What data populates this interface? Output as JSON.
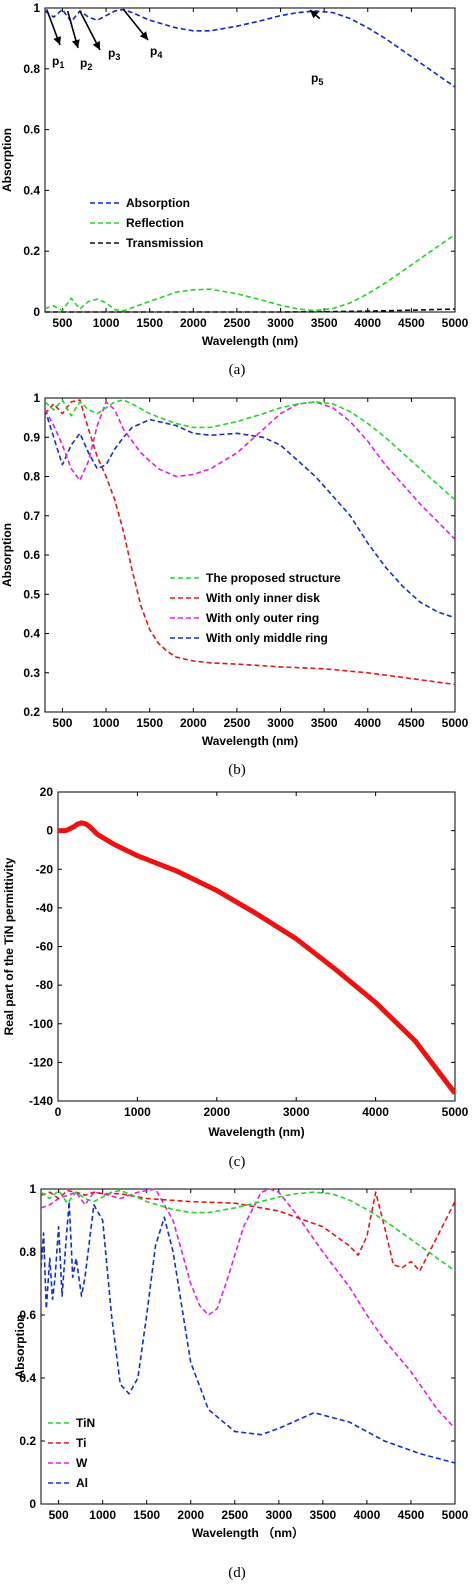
{
  "chart_data": [
    {
      "id": "a",
      "type": "line",
      "panel_label": "(a)",
      "xlabel": "Wavelength (nm)",
      "ylabel": "Absorption",
      "xlim": [
        300,
        5000
      ],
      "ylim": [
        0,
        1
      ],
      "xticks": [
        500,
        1000,
        1500,
        2000,
        2500,
        3000,
        3500,
        4000,
        4500,
        5000
      ],
      "yticks": [
        0,
        0.2,
        0.4,
        0.6,
        0.8,
        1
      ],
      "ytick_labels": [
        "0",
        "0.2",
        "0.4",
        "0.6",
        "0.8",
        "1"
      ],
      "legend_position": "lower-left",
      "line_style": "dashed",
      "series": [
        {
          "name": "Absorption",
          "color": "#0b27c8",
          "x": [
            300,
            400,
            500,
            600,
            700,
            800,
            900,
            1000,
            1100,
            1200,
            1300,
            1500,
            1800,
            2000,
            2200,
            2500,
            2800,
            3000,
            3200,
            3400,
            3600,
            3800,
            4000,
            4200,
            4400,
            4600,
            4800,
            5000
          ],
          "y": [
            0.99,
            0.97,
            0.995,
            0.955,
            0.99,
            0.97,
            0.96,
            0.975,
            0.99,
            0.995,
            0.985,
            0.96,
            0.935,
            0.925,
            0.925,
            0.94,
            0.96,
            0.975,
            0.985,
            0.99,
            0.985,
            0.965,
            0.935,
            0.9,
            0.86,
            0.82,
            0.78,
            0.74
          ]
        },
        {
          "name": "Reflection",
          "color": "#26d326",
          "x": [
            300,
            400,
            500,
            600,
            700,
            800,
            900,
            1000,
            1100,
            1200,
            1500,
            1800,
            2000,
            2200,
            2500,
            2800,
            3000,
            3200,
            3400,
            3600,
            3800,
            4000,
            4200,
            4400,
            4600,
            4800,
            5000
          ],
          "y": [
            0.012,
            0.02,
            0.005,
            0.045,
            0.01,
            0.035,
            0.042,
            0.03,
            0.008,
            0.004,
            0.035,
            0.065,
            0.073,
            0.075,
            0.06,
            0.038,
            0.022,
            0.01,
            0.005,
            0.012,
            0.03,
            0.06,
            0.095,
            0.135,
            0.175,
            0.215,
            0.255
          ]
        },
        {
          "name": "Transmission",
          "color": "#111111",
          "x": [
            300,
            1000,
            2000,
            3000,
            3500,
            4000,
            4500,
            5000
          ],
          "y": [
            0.0,
            0.0,
            0.0,
            0.0,
            0.001,
            0.003,
            0.006,
            0.01
          ]
        }
      ],
      "annotations": [
        {
          "base": "p",
          "sub": "1"
        },
        {
          "base": "p",
          "sub": "2"
        },
        {
          "base": "p",
          "sub": "3"
        },
        {
          "base": "p",
          "sub": "4"
        },
        {
          "base": "p",
          "sub": "5"
        }
      ]
    },
    {
      "id": "b",
      "type": "line",
      "panel_label": "(b)",
      "xlabel": "Wavelength (nm)",
      "ylabel": "Absorption",
      "xlim": [
        300,
        5000
      ],
      "ylim": [
        0.2,
        1
      ],
      "xticks": [
        500,
        1000,
        1500,
        2000,
        2500,
        3000,
        3500,
        4000,
        4500,
        5000
      ],
      "yticks": [
        0.2,
        0.3,
        0.4,
        0.5,
        0.6,
        0.7,
        0.8,
        0.9,
        1
      ],
      "ytick_labels": [
        "0.2",
        "0.3",
        "0.4",
        "0.5",
        "0.6",
        "0.7",
        "0.8",
        "0.9",
        "1"
      ],
      "legend_position": "center-right",
      "line_style": "dashed",
      "series": [
        {
          "name": "The proposed structure",
          "color": "#26d326",
          "x": [
            300,
            400,
            500,
            600,
            700,
            800,
            900,
            1000,
            1100,
            1200,
            1300,
            1500,
            1800,
            2000,
            2200,
            2500,
            2800,
            3000,
            3200,
            3400,
            3600,
            3800,
            4000,
            4200,
            4400,
            4600,
            4800,
            5000
          ],
          "y": [
            0.99,
            0.97,
            0.995,
            0.955,
            0.99,
            0.97,
            0.96,
            0.975,
            0.99,
            0.995,
            0.985,
            0.96,
            0.935,
            0.925,
            0.925,
            0.94,
            0.96,
            0.975,
            0.985,
            0.99,
            0.985,
            0.965,
            0.935,
            0.9,
            0.86,
            0.82,
            0.78,
            0.74
          ]
        },
        {
          "name": "With only inner disk",
          "color": "#e01818",
          "x": [
            300,
            400,
            500,
            600,
            700,
            800,
            900,
            1000,
            1100,
            1200,
            1300,
            1400,
            1500,
            1600,
            1700,
            1800,
            2000,
            2200,
            2500,
            3000,
            3500,
            4000,
            4500,
            5000
          ],
          "y": [
            0.96,
            0.985,
            0.96,
            0.99,
            0.995,
            0.92,
            0.85,
            0.8,
            0.74,
            0.66,
            0.56,
            0.47,
            0.41,
            0.375,
            0.355,
            0.34,
            0.33,
            0.325,
            0.322,
            0.315,
            0.31,
            0.3,
            0.285,
            0.27
          ]
        },
        {
          "name": "With only outer ring",
          "color": "#e020e0",
          "x": [
            300,
            400,
            500,
            600,
            700,
            800,
            900,
            1000,
            1100,
            1200,
            1400,
            1600,
            1800,
            2000,
            2200,
            2500,
            2800,
            3000,
            3200,
            3400,
            3600,
            3800,
            4000,
            4200,
            4400,
            4600,
            4800,
            5000
          ],
          "y": [
            0.97,
            0.93,
            0.88,
            0.82,
            0.79,
            0.84,
            0.93,
            0.99,
            0.97,
            0.92,
            0.86,
            0.82,
            0.8,
            0.805,
            0.82,
            0.86,
            0.92,
            0.96,
            0.985,
            0.99,
            0.975,
            0.94,
            0.89,
            0.83,
            0.78,
            0.73,
            0.685,
            0.64
          ]
        },
        {
          "name": "With only middle ring",
          "color": "#1030c8",
          "x": [
            300,
            400,
            500,
            600,
            700,
            800,
            900,
            1000,
            1100,
            1200,
            1300,
            1500,
            1800,
            2000,
            2200,
            2500,
            2800,
            3000,
            3200,
            3400,
            3600,
            3800,
            4000,
            4200,
            4400,
            4600,
            4800,
            5000
          ],
          "y": [
            0.97,
            0.9,
            0.83,
            0.88,
            0.91,
            0.86,
            0.82,
            0.83,
            0.87,
            0.9,
            0.925,
            0.945,
            0.93,
            0.91,
            0.905,
            0.91,
            0.9,
            0.88,
            0.84,
            0.8,
            0.75,
            0.7,
            0.63,
            0.57,
            0.52,
            0.48,
            0.455,
            0.44
          ]
        }
      ]
    },
    {
      "id": "c",
      "type": "line",
      "panel_label": "(c)",
      "xlabel": "Wavelength (nm)",
      "ylabel": "Real part of the TiN permittivity",
      "xlim": [
        0,
        5000
      ],
      "ylim": [
        -140,
        20
      ],
      "xticks": [
        0,
        1000,
        2000,
        3000,
        4000,
        5000
      ],
      "yticks": [
        -140,
        -120,
        -100,
        -80,
        -60,
        -40,
        -20,
        0,
        20
      ],
      "ytick_labels": [
        "-140",
        "-120",
        "-100",
        "-80",
        "-60",
        "-40",
        "-20",
        "0",
        "20"
      ],
      "line_style": "solid-thick",
      "series": [
        {
          "color": "#ee1111",
          "x": [
            0,
            100,
            200,
            250,
            300,
            350,
            400,
            500,
            700,
            1000,
            1500,
            2000,
            2500,
            3000,
            3500,
            4000,
            4500,
            5000
          ],
          "y": [
            0,
            0,
            2,
            3.5,
            4,
            3.5,
            2,
            -2,
            -7,
            -13,
            -21,
            -31,
            -43,
            -56,
            -72,
            -89,
            -109,
            -136
          ]
        }
      ]
    },
    {
      "id": "d",
      "type": "line",
      "panel_label": "(d)",
      "xlabel": "Wavelength （nm）",
      "ylabel": "Absorption",
      "xlim": [
        300,
        5000
      ],
      "ylim": [
        0,
        1
      ],
      "xticks": [
        500,
        1000,
        1500,
        2000,
        2500,
        3000,
        3500,
        4000,
        4500,
        5000
      ],
      "yticks": [
        0,
        0.2,
        0.4,
        0.6,
        0.8,
        1
      ],
      "ytick_labels": [
        "0",
        "0.2",
        "0.4",
        "0.6",
        "0.8",
        "1"
      ],
      "legend_position": "lower-left",
      "line_style": "dashed",
      "series": [
        {
          "name": "TiN",
          "color": "#26d326",
          "x": [
            300,
            400,
            500,
            600,
            700,
            800,
            900,
            1000,
            1100,
            1200,
            1300,
            1500,
            1800,
            2000,
            2200,
            2500,
            2800,
            3000,
            3200,
            3400,
            3600,
            3800,
            4000,
            4200,
            4400,
            4600,
            4800,
            5000
          ],
          "y": [
            0.99,
            0.97,
            0.995,
            0.955,
            0.99,
            0.97,
            0.96,
            0.975,
            0.99,
            0.995,
            0.985,
            0.96,
            0.935,
            0.925,
            0.925,
            0.94,
            0.96,
            0.975,
            0.985,
            0.99,
            0.985,
            0.965,
            0.935,
            0.9,
            0.86,
            0.82,
            0.78,
            0.74
          ]
        },
        {
          "name": "Ti",
          "color": "#e01818",
          "x": [
            300,
            400,
            500,
            600,
            700,
            800,
            900,
            1000,
            1200,
            1500,
            2000,
            2500,
            3000,
            3500,
            3800,
            3900,
            4000,
            4100,
            4200,
            4300,
            4400,
            4500,
            4600,
            4800,
            5000
          ],
          "y": [
            0.98,
            0.99,
            0.97,
            0.995,
            0.99,
            0.98,
            0.99,
            0.985,
            0.985,
            0.97,
            0.96,
            0.955,
            0.93,
            0.88,
            0.82,
            0.79,
            0.85,
            0.99,
            0.88,
            0.76,
            0.75,
            0.77,
            0.74,
            0.85,
            0.96
          ]
        },
        {
          "name": "W",
          "color": "#e020e0",
          "x": [
            300,
            400,
            500,
            600,
            700,
            800,
            900,
            1000,
            1200,
            1400,
            1600,
            1800,
            2000,
            2100,
            2200,
            2300,
            2400,
            2600,
            2800,
            2900,
            3000,
            3200,
            3500,
            3800,
            4000,
            4200,
            4500,
            4800,
            5000
          ],
          "y": [
            0.94,
            0.95,
            0.97,
            0.98,
            0.99,
            0.95,
            0.99,
            0.985,
            0.97,
            0.99,
            1.0,
            0.9,
            0.7,
            0.63,
            0.6,
            0.62,
            0.7,
            0.88,
            0.99,
            1.0,
            0.99,
            0.92,
            0.8,
            0.69,
            0.6,
            0.52,
            0.42,
            0.3,
            0.24
          ]
        },
        {
          "name": "Al",
          "color": "#1030c8",
          "x": [
            300,
            330,
            360,
            400,
            430,
            460,
            500,
            540,
            580,
            620,
            660,
            700,
            760,
            800,
            900,
            1000,
            1100,
            1200,
            1300,
            1400,
            1500,
            1600,
            1700,
            1800,
            2000,
            2200,
            2500,
            2800,
            3000,
            3400,
            3800,
            4200,
            4600,
            5000
          ],
          "y": [
            0.75,
            0.86,
            0.62,
            0.78,
            0.65,
            0.72,
            0.88,
            0.66,
            0.82,
            0.96,
            0.72,
            0.78,
            0.66,
            0.72,
            0.95,
            0.9,
            0.6,
            0.38,
            0.35,
            0.4,
            0.6,
            0.82,
            0.91,
            0.8,
            0.45,
            0.3,
            0.23,
            0.22,
            0.24,
            0.29,
            0.26,
            0.2,
            0.16,
            0.13
          ]
        }
      ]
    }
  ]
}
